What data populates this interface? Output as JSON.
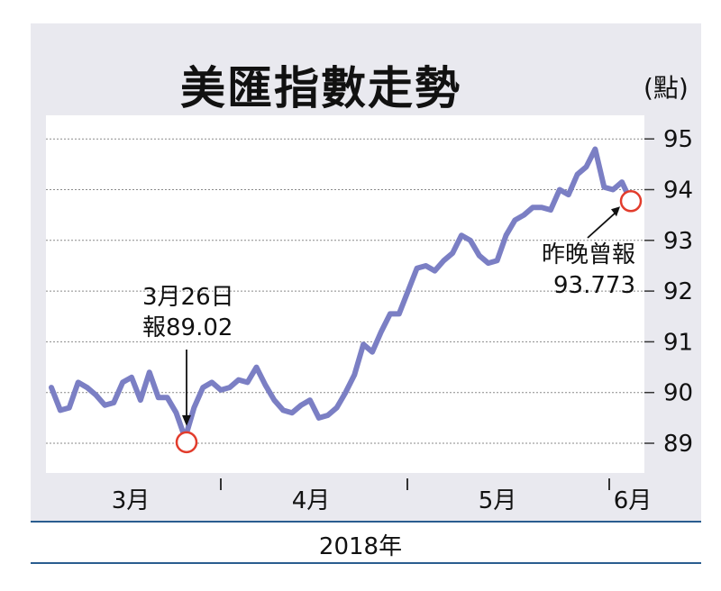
{
  "chart_data": {
    "type": "line",
    "title": "美匯指數走勢",
    "unit": "(點)",
    "xlabel": "2018年",
    "x_ticks": [
      "3月",
      "4月",
      "5月",
      "6月"
    ],
    "y_ticks": [
      "89",
      "90",
      "91",
      "92",
      "93",
      "94",
      "95"
    ],
    "ylim": [
      88.4,
      95.6
    ],
    "grid": true,
    "line_color": "#7b7fc4",
    "marker_color": "#e23c2c",
    "series": [
      {
        "values": [
          90.1,
          89.65,
          89.7,
          90.2,
          90.1,
          89.95,
          89.75,
          89.8,
          90.2,
          90.3,
          89.85,
          90.4,
          89.9,
          89.9,
          89.6,
          89.1,
          89.7,
          90.1,
          90.2,
          90.05,
          90.1,
          90.25,
          90.2,
          90.5,
          90.15,
          89.85,
          89.65,
          89.6,
          89.75,
          89.85,
          89.5,
          89.55,
          89.7,
          90.0,
          90.35,
          90.95,
          90.8,
          91.2,
          91.55,
          91.55,
          92.0,
          92.45,
          92.5,
          92.4,
          92.6,
          92.75,
          93.1,
          93.0,
          92.7,
          92.55,
          92.6,
          93.1,
          93.4,
          93.5,
          93.65,
          93.65,
          93.6,
          94.0,
          93.9,
          94.3,
          94.45,
          94.8,
          94.05,
          94.0,
          94.15,
          93.77
        ]
      }
    ],
    "annotations": [
      {
        "line1": "3月26日",
        "line2": "報89.02",
        "index": 15,
        "value": 89.02
      },
      {
        "line1": "昨晚曾報",
        "line2": "93.773",
        "index": 65,
        "value": 93.773
      }
    ]
  }
}
